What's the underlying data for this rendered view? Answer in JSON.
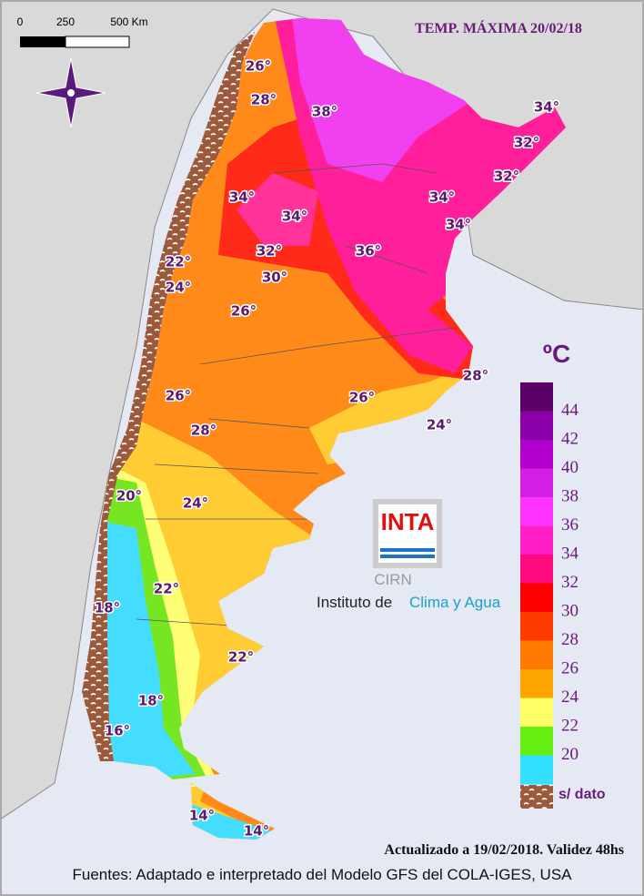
{
  "header": {
    "title": "TEMP. MÁXIMA 20/02/18"
  },
  "scale_bar": {
    "labels": [
      "0",
      "250",
      "500 Km"
    ]
  },
  "legend": {
    "unit": "ºC",
    "labels": [
      "44",
      "42",
      "40",
      "38",
      "36",
      "34",
      "32",
      "30",
      "28",
      "26",
      "24",
      "22",
      "20"
    ],
    "colors": [
      "#5a0066",
      "#8a00a8",
      "#b300d1",
      "#d21fe6",
      "#ff33ff",
      "#ff1fc4",
      "#ff0a7f",
      "#ff0000",
      "#ff3c00",
      "#ff7a00",
      "#ffa500",
      "#ffff66",
      "#66ee11",
      "#33e0ff"
    ],
    "no_data": "s/ dato"
  },
  "map_labels": [
    "26°",
    "28°",
    "38°",
    "34°",
    "32°",
    "32°",
    "34°",
    "34°",
    "34°",
    "34°",
    "32°",
    "36°",
    "22°",
    "30°",
    "24°",
    "26°",
    "28°",
    "26°",
    "26°",
    "24°",
    "28°",
    "20°",
    "24°",
    "22°",
    "18°",
    "22°",
    "18°",
    "16°",
    "14°",
    "14°"
  ],
  "logo": {
    "brand": "INTA",
    "unit": "CIRN",
    "institute_prefix": "Instituto de",
    "institute_highlight": "Clima y Agua"
  },
  "footer": {
    "updated": "Actualizado a 19/02/2018. Validez 48hs",
    "sources": "Fuentes: Adaptado e interpretado del Modelo GFS del COLA-IGES, USA"
  }
}
